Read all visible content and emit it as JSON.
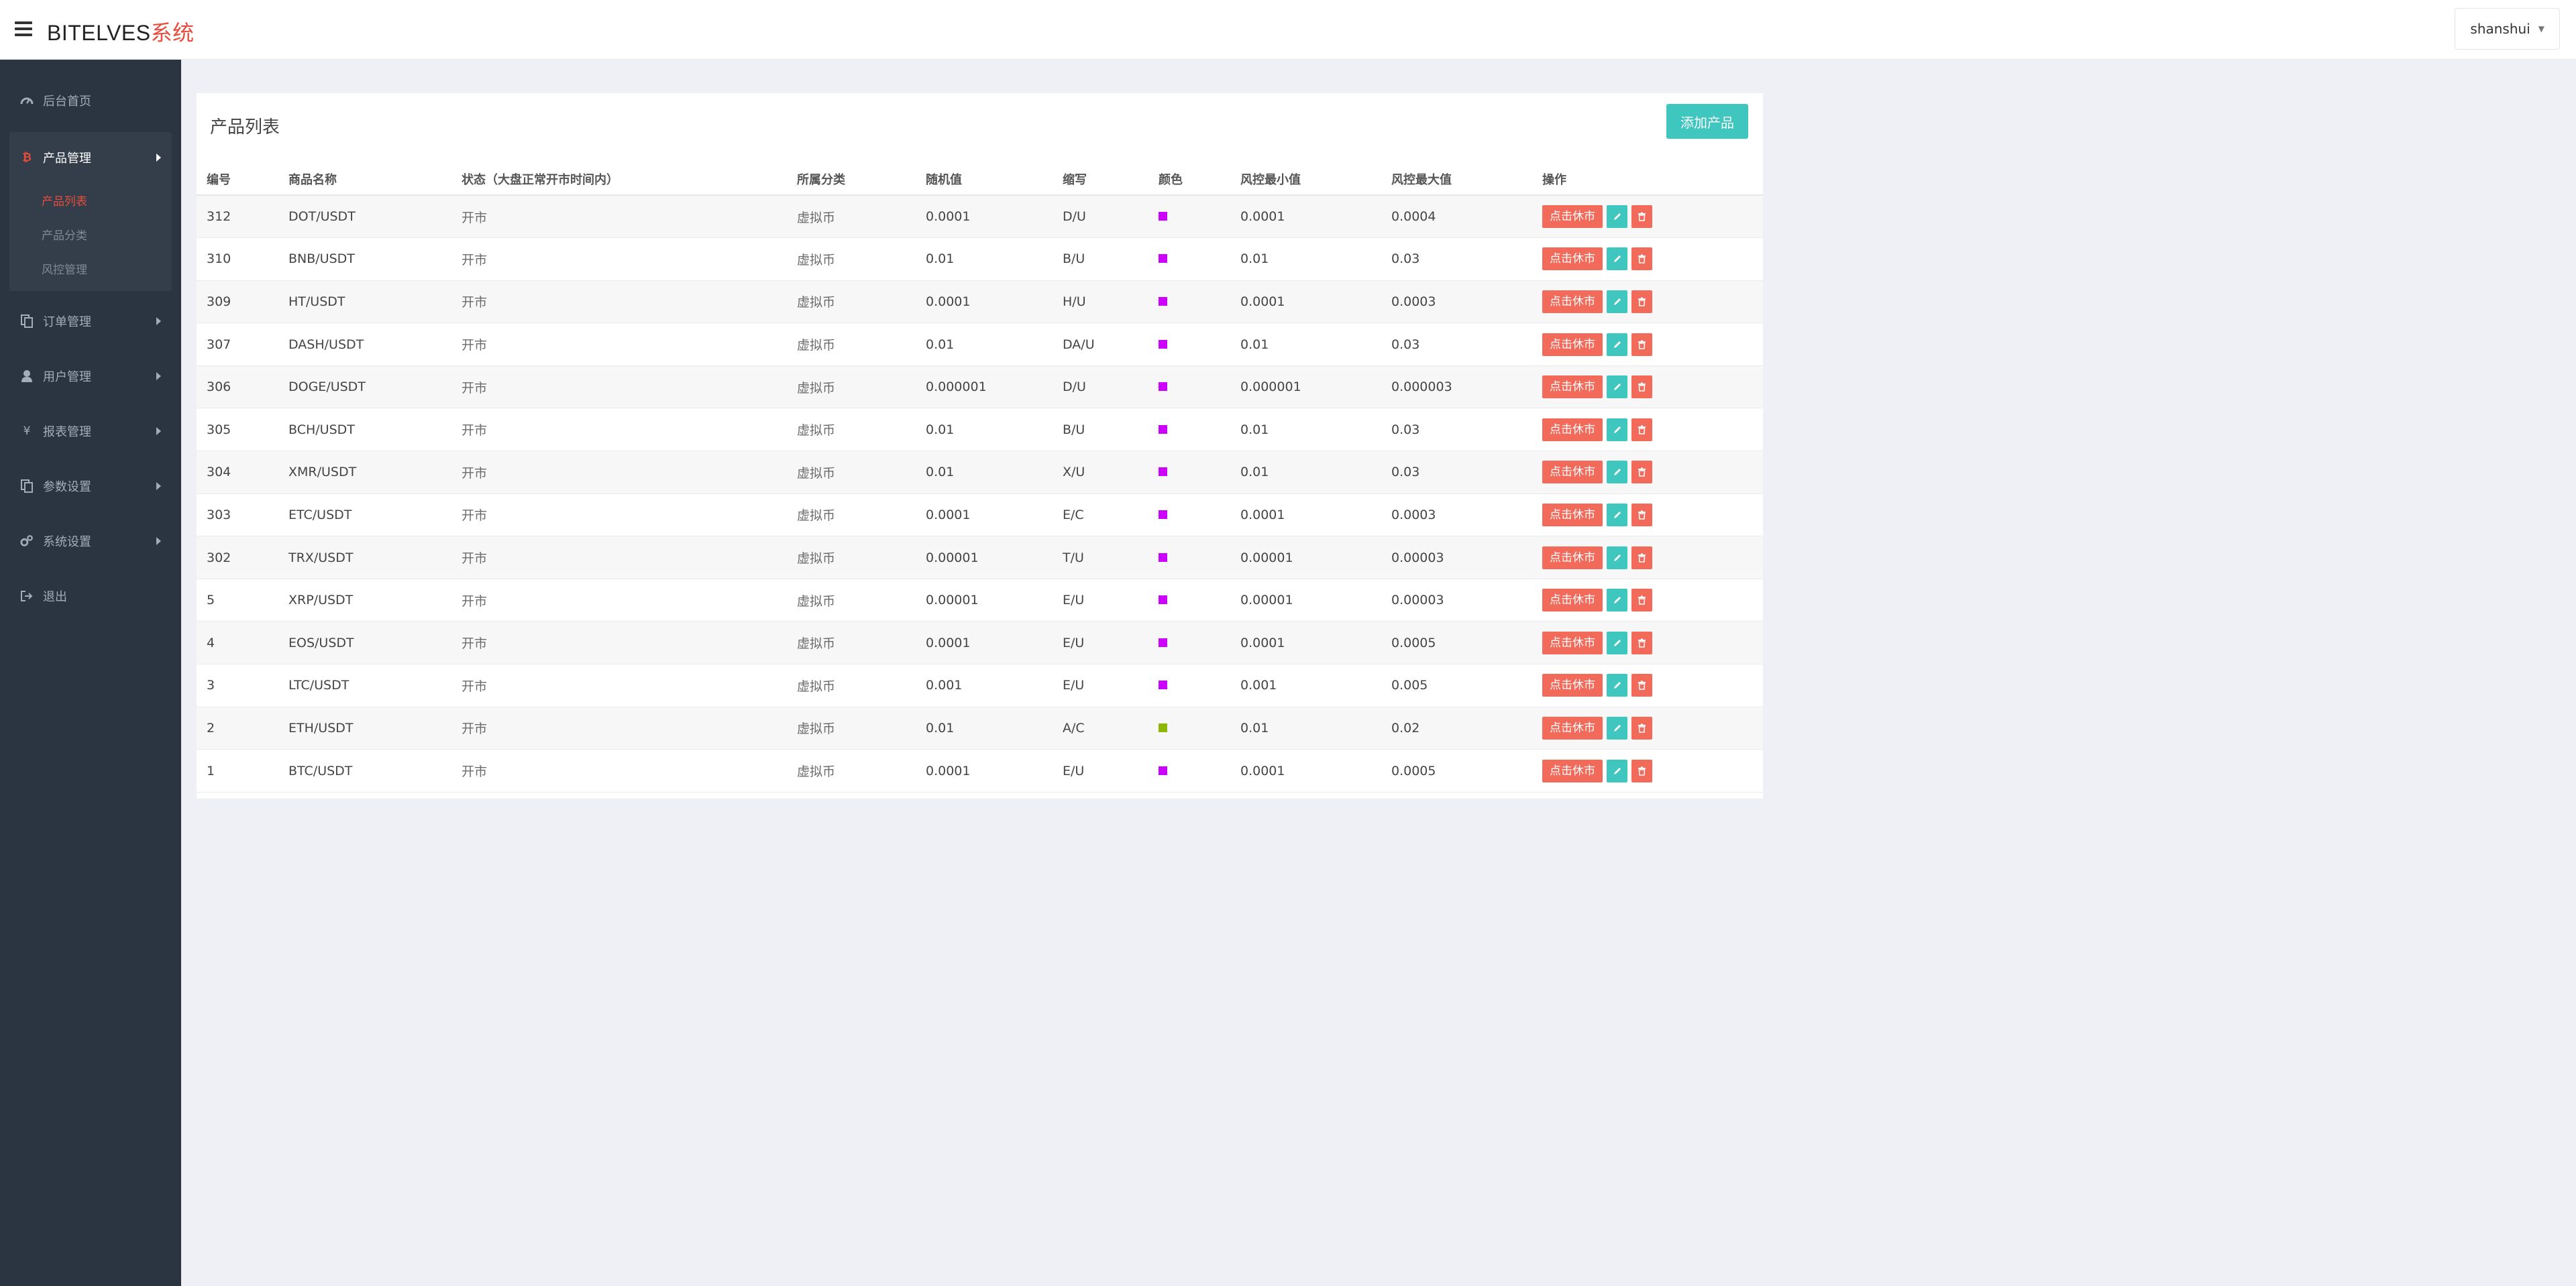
{
  "header": {
    "brand": "BITELVES",
    "brand_accent": "系统",
    "username": "shanshui"
  },
  "sidebar": {
    "items": [
      {
        "label": "后台首页",
        "icon": "dashboard-icon"
      },
      {
        "label": "产品管理",
        "icon": "bitcoin-icon",
        "expanded": true,
        "children": [
          {
            "label": "产品列表",
            "active": true
          },
          {
            "label": "产品分类"
          },
          {
            "label": "风控管理"
          }
        ]
      },
      {
        "label": "订单管理",
        "icon": "copy-icon"
      },
      {
        "label": "用户管理",
        "icon": "user-icon"
      },
      {
        "label": "报表管理",
        "icon": "yen-icon"
      },
      {
        "label": "参数设置",
        "icon": "copy-icon"
      },
      {
        "label": "系统设置",
        "icon": "gears-icon"
      },
      {
        "label": "退出",
        "icon": "sign-out-icon"
      }
    ]
  },
  "main": {
    "title": "产品列表",
    "add_button": "添加产品",
    "table": {
      "columns": [
        "编号",
        "商品名称",
        "状态（大盘正常开市时间内）",
        "所属分类",
        "随机值",
        "缩写",
        "颜色",
        "风控最小值",
        "风控最大值",
        "操作"
      ],
      "rows": [
        {
          "id": "312",
          "name": "DOT/USDT",
          "status": "开市",
          "category": "虚拟币",
          "random": "0.0001",
          "abbr": "D/U",
          "color": "#cc00ff",
          "min": "0.0001",
          "max": "0.0004"
        },
        {
          "id": "310",
          "name": "BNB/USDT",
          "status": "开市",
          "category": "虚拟币",
          "random": "0.01",
          "abbr": "B/U",
          "color": "#cc00ff",
          "min": "0.01",
          "max": "0.03"
        },
        {
          "id": "309",
          "name": "HT/USDT",
          "status": "开市",
          "category": "虚拟币",
          "random": "0.0001",
          "abbr": "H/U",
          "color": "#cc00ff",
          "min": "0.0001",
          "max": "0.0003"
        },
        {
          "id": "307",
          "name": "DASH/USDT",
          "status": "开市",
          "category": "虚拟币",
          "random": "0.01",
          "abbr": "DA/U",
          "color": "#cc00ff",
          "min": "0.01",
          "max": "0.03"
        },
        {
          "id": "306",
          "name": "DOGE/USDT",
          "status": "开市",
          "category": "虚拟币",
          "random": "0.000001",
          "abbr": "D/U",
          "color": "#cc00ff",
          "min": "0.000001",
          "max": "0.000003"
        },
        {
          "id": "305",
          "name": "BCH/USDT",
          "status": "开市",
          "category": "虚拟币",
          "random": "0.01",
          "abbr": "B/U",
          "color": "#cc00ff",
          "min": "0.01",
          "max": "0.03"
        },
        {
          "id": "304",
          "name": "XMR/USDT",
          "status": "开市",
          "category": "虚拟币",
          "random": "0.01",
          "abbr": "X/U",
          "color": "#cc00ff",
          "min": "0.01",
          "max": "0.03"
        },
        {
          "id": "303",
          "name": "ETC/USDT",
          "status": "开市",
          "category": "虚拟币",
          "random": "0.0001",
          "abbr": "E/C",
          "color": "#cc00ff",
          "min": "0.0001",
          "max": "0.0003"
        },
        {
          "id": "302",
          "name": "TRX/USDT",
          "status": "开市",
          "category": "虚拟币",
          "random": "0.00001",
          "abbr": "T/U",
          "color": "#cc00ff",
          "min": "0.00001",
          "max": "0.00003"
        },
        {
          "id": "5",
          "name": "XRP/USDT",
          "status": "开市",
          "category": "虚拟币",
          "random": "0.00001",
          "abbr": "E/U",
          "color": "#cc00ff",
          "min": "0.00001",
          "max": "0.00003"
        },
        {
          "id": "4",
          "name": "EOS/USDT",
          "status": "开市",
          "category": "虚拟币",
          "random": "0.0001",
          "abbr": "E/U",
          "color": "#cc00ff",
          "min": "0.0001",
          "max": "0.0005"
        },
        {
          "id": "3",
          "name": "LTC/USDT",
          "status": "开市",
          "category": "虚拟币",
          "random": "0.001",
          "abbr": "E/U",
          "color": "#cc00ff",
          "min": "0.001",
          "max": "0.005"
        },
        {
          "id": "2",
          "name": "ETH/USDT",
          "status": "开市",
          "category": "虚拟币",
          "random": "0.01",
          "abbr": "A/C",
          "color": "#8db600",
          "min": "0.01",
          "max": "0.02"
        },
        {
          "id": "1",
          "name": "BTC/USDT",
          "status": "开市",
          "category": "虚拟币",
          "random": "0.0001",
          "abbr": "E/U",
          "color": "#cc00ff",
          "min": "0.0001",
          "max": "0.0005"
        }
      ],
      "row_action_label": "点击休市"
    }
  },
  "colors": {
    "accent_teal": "#3fc6be",
    "accent_red": "#f16a5a",
    "sidebar_bg": "#2b3541"
  }
}
